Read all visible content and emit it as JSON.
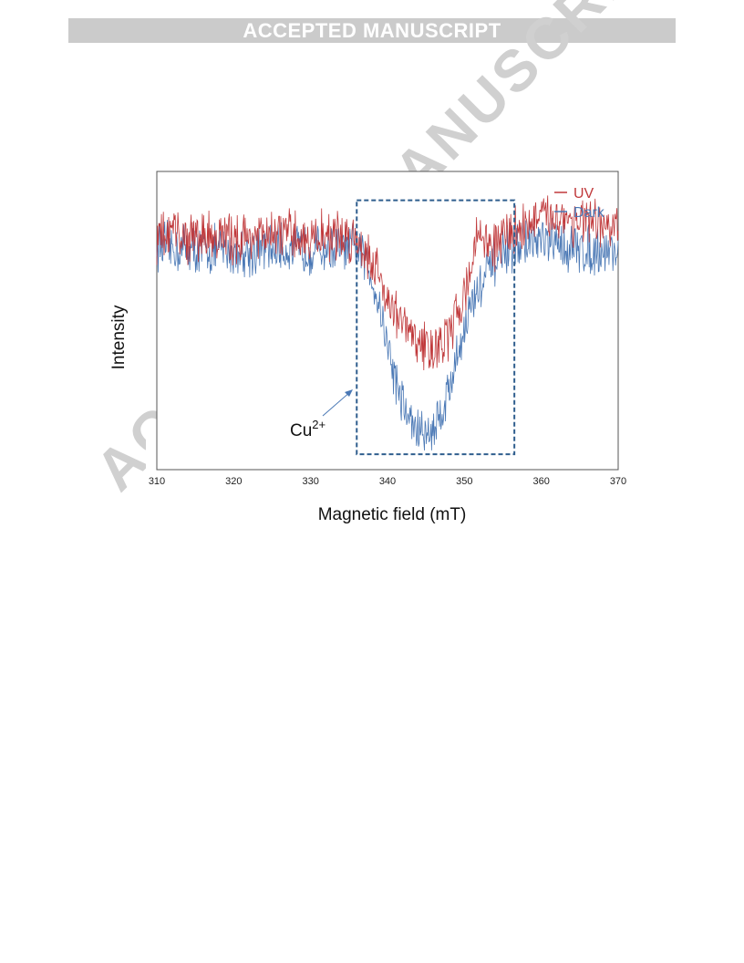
{
  "banner": {
    "text": "ACCEPTED MANUSCRIPT"
  },
  "watermark": {
    "text": "ACCEPTED MANUSCRIPT"
  },
  "chart_data": {
    "type": "line",
    "title": "",
    "xlabel": "Magnetic field (mT)",
    "ylabel": "Intensity",
    "xlim": [
      310,
      370
    ],
    "ylim": [
      -1.2,
      0.35
    ],
    "xticks": [
      310,
      320,
      330,
      340,
      350,
      360,
      370
    ],
    "grid": false,
    "legend": {
      "placement": "top-right"
    },
    "series": [
      {
        "name": "UV",
        "color": "#c0393b",
        "x": [
          310,
          312,
          314,
          316,
          318,
          320,
          322,
          324,
          326,
          328,
          330,
          332,
          334,
          336,
          337,
          338,
          339,
          340,
          341,
          342,
          343,
          344,
          345,
          346,
          347,
          348,
          349,
          350,
          351,
          352,
          353,
          354,
          355,
          356,
          357,
          358,
          360,
          362,
          364,
          366,
          368,
          370
        ],
        "y": [
          0,
          0.03,
          0,
          0.02,
          0.01,
          0,
          0.02,
          0,
          0.03,
          0.01,
          0,
          0.02,
          0.01,
          0,
          -0.05,
          -0.12,
          -0.2,
          -0.3,
          -0.38,
          -0.45,
          -0.5,
          -0.54,
          -0.56,
          -0.57,
          -0.55,
          -0.5,
          -0.4,
          -0.28,
          -0.12,
          0.05,
          -0.02,
          -0.05,
          0.02,
          0.03,
          0.05,
          0.08,
          0.1,
          0.12,
          0.1,
          0.08,
          0.06,
          0.05
        ]
      },
      {
        "name": "Dark",
        "color": "#4a78b5",
        "x": [
          310,
          312,
          314,
          316,
          318,
          320,
          322,
          324,
          326,
          328,
          330,
          332,
          334,
          336,
          337,
          338,
          339,
          340,
          341,
          342,
          343,
          344,
          345,
          346,
          347,
          348,
          349,
          350,
          351,
          352,
          353,
          354,
          355,
          356,
          357,
          358,
          360,
          362,
          364,
          366,
          368,
          370
        ],
        "y": [
          -0.03,
          -0.05,
          -0.05,
          -0.06,
          -0.06,
          -0.07,
          -0.07,
          -0.05,
          -0.05,
          -0.06,
          -0.05,
          -0.06,
          -0.05,
          -0.06,
          -0.1,
          -0.2,
          -0.35,
          -0.55,
          -0.72,
          -0.86,
          -0.95,
          -1,
          -1.02,
          -0.98,
          -0.9,
          -0.78,
          -0.62,
          -0.46,
          -0.33,
          -0.25,
          -0.18,
          -0.12,
          -0.08,
          -0.05,
          -0.03,
          -0.02,
          -0.02,
          -0.03,
          -0.05,
          -0.06,
          -0.06,
          -0.06
        ]
      }
    ],
    "annotations": [
      {
        "type": "dashed-box",
        "x_range": [
          336,
          356.5
        ],
        "y_range": [
          -1.12,
          0.2
        ],
        "color": "#2f5e8e"
      },
      {
        "type": "arrow-label",
        "text": "Cu",
        "superscript": "2+",
        "color": "#4a78b5"
      }
    ]
  }
}
